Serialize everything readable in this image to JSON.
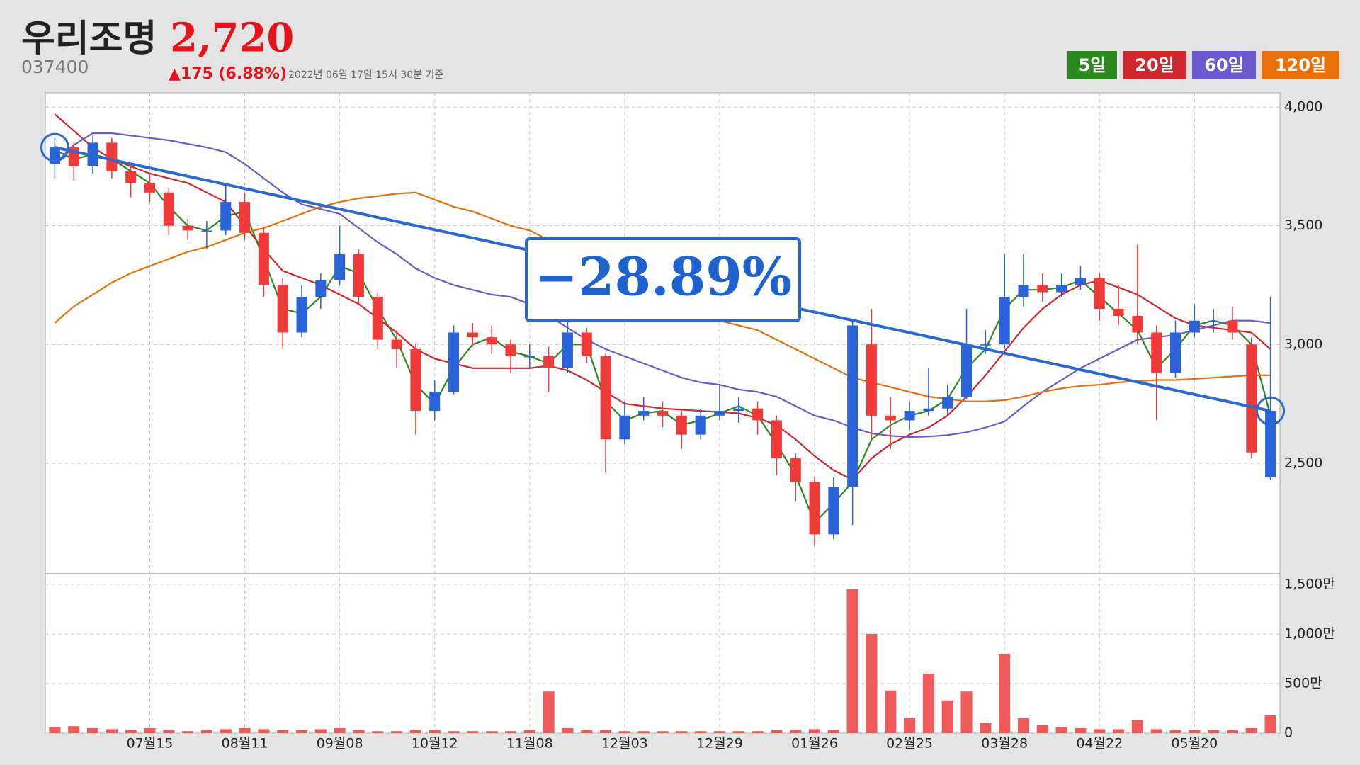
{
  "chart_data": {
    "type": "candlestick",
    "title": "우리조명",
    "price_label": "2,720",
    "code": "037400",
    "change_label": "▲175 (6.88%)",
    "timestamp": "2022년 06월 17일 15시 30분 기준",
    "annotation": "−28.89%",
    "categories": [
      null,
      null,
      null,
      null,
      null,
      "07월15",
      null,
      null,
      null,
      null,
      "08월11",
      null,
      null,
      null,
      null,
      "09월08",
      null,
      null,
      null,
      null,
      "10월12",
      null,
      null,
      null,
      null,
      "11월08",
      null,
      null,
      null,
      null,
      "12월03",
      null,
      null,
      null,
      null,
      "12월29",
      null,
      null,
      null,
      null,
      "01월26",
      null,
      null,
      null,
      null,
      "02월25",
      null,
      null,
      null,
      null,
      "03월28",
      null,
      null,
      null,
      null,
      "04월22",
      null,
      null,
      null,
      null,
      "05월20",
      null,
      null,
      null,
      null
    ],
    "candles": [
      [
        3760,
        3870,
        3700,
        3830
      ],
      [
        3830,
        3850,
        3690,
        3750
      ],
      [
        3750,
        3880,
        3720,
        3850
      ],
      [
        3850,
        3870,
        3700,
        3730
      ],
      [
        3730,
        3760,
        3620,
        3680
      ],
      [
        3680,
        3720,
        3600,
        3640
      ],
      [
        3640,
        3660,
        3460,
        3500
      ],
      [
        3500,
        3530,
        3440,
        3480
      ],
      [
        3480,
        3520,
        3400,
        3480
      ],
      [
        3480,
        3680,
        3460,
        3600
      ],
      [
        3600,
        3640,
        3440,
        3470
      ],
      [
        3470,
        3490,
        3200,
        3250
      ],
      [
        3250,
        3280,
        2980,
        3050
      ],
      [
        3050,
        3250,
        3030,
        3200
      ],
      [
        3200,
        3300,
        3150,
        3270
      ],
      [
        3270,
        3500,
        3250,
        3380
      ],
      [
        3380,
        3400,
        3170,
        3200
      ],
      [
        3200,
        3220,
        2980,
        3020
      ],
      [
        3020,
        3060,
        2900,
        2980
      ],
      [
        2980,
        3000,
        2620,
        2720
      ],
      [
        2720,
        2850,
        2680,
        2800
      ],
      [
        2800,
        3080,
        2790,
        3050
      ],
      [
        3050,
        3090,
        2990,
        3030
      ],
      [
        3030,
        3080,
        2960,
        3000
      ],
      [
        3000,
        3020,
        2880,
        2950
      ],
      [
        2950,
        3000,
        2900,
        2950
      ],
      [
        2950,
        2990,
        2800,
        2900
      ],
      [
        2900,
        3150,
        2880,
        3050
      ],
      [
        3050,
        3070,
        2920,
        2950
      ],
      [
        2950,
        2960,
        2460,
        2600
      ],
      [
        2600,
        2760,
        2580,
        2700
      ],
      [
        2700,
        2780,
        2680,
        2720
      ],
      [
        2720,
        2760,
        2650,
        2700
      ],
      [
        2700,
        2720,
        2560,
        2620
      ],
      [
        2620,
        2730,
        2600,
        2700
      ],
      [
        2700,
        2830,
        2680,
        2720
      ],
      [
        2720,
        2780,
        2670,
        2730
      ],
      [
        2730,
        2760,
        2620,
        2680
      ],
      [
        2680,
        2700,
        2450,
        2520
      ],
      [
        2520,
        2540,
        2340,
        2420
      ],
      [
        2420,
        2440,
        2150,
        2200
      ],
      [
        2200,
        2440,
        2180,
        2400
      ],
      [
        2400,
        3100,
        2240,
        3080
      ],
      [
        3000,
        3150,
        2600,
        2700
      ],
      [
        2700,
        2780,
        2560,
        2680
      ],
      [
        2680,
        2760,
        2640,
        2720
      ],
      [
        2720,
        2900,
        2700,
        2730
      ],
      [
        2730,
        2830,
        2700,
        2780
      ],
      [
        2780,
        3150,
        2770,
        3000
      ],
      [
        3000,
        3060,
        2960,
        3000
      ],
      [
        3000,
        3380,
        2980,
        3200
      ],
      [
        3200,
        3380,
        3160,
        3250
      ],
      [
        3250,
        3300,
        3180,
        3220
      ],
      [
        3220,
        3300,
        3200,
        3250
      ],
      [
        3250,
        3330,
        3230,
        3280
      ],
      [
        3280,
        3300,
        3100,
        3150
      ],
      [
        3150,
        3250,
        3080,
        3120
      ],
      [
        3120,
        3420,
        3000,
        3050
      ],
      [
        3050,
        3080,
        2680,
        2880
      ],
      [
        2880,
        3100,
        2860,
        3050
      ],
      [
        3050,
        3170,
        3030,
        3100
      ],
      [
        3100,
        3150,
        3050,
        3100
      ],
      [
        3100,
        3160,
        3020,
        3050
      ],
      [
        3000,
        3030,
        2520,
        2545
      ],
      [
        2440,
        3200,
        2430,
        2720
      ]
    ],
    "up_color": "#2a62d8",
    "down_color": "#f03a3a",
    "series": [
      {
        "name": "5일",
        "color": "#2a8a1e",
        "values": [
          3820,
          3780,
          3800,
          3780,
          3730,
          3680,
          3580,
          3500,
          3480,
          3540,
          3560,
          3360,
          3150,
          3130,
          3200,
          3330,
          3300,
          3150,
          3020,
          2830,
          2750,
          2900,
          3000,
          3030,
          2970,
          2950,
          2920,
          3000,
          3000,
          2760,
          2680,
          2710,
          2720,
          2660,
          2680,
          2710,
          2740,
          2700,
          2580,
          2450,
          2250,
          2330,
          2420,
          2600,
          2660,
          2700,
          2720,
          2770,
          2900,
          2980,
          3150,
          3230,
          3230,
          3240,
          3270,
          3200,
          3130,
          3060,
          2900,
          2980,
          3080,
          3100,
          3080,
          3000,
          2700
        ]
      },
      {
        "name": "20일",
        "color": "#d0262e",
        "values": [
          3970,
          3900,
          3830,
          3780,
          3750,
          3720,
          3700,
          3680,
          3640,
          3600,
          3500,
          3400,
          3310,
          3280,
          3250,
          3210,
          3170,
          3110,
          3050,
          2980,
          2940,
          2920,
          2900,
          2900,
          2900,
          2900,
          2910,
          2890,
          2850,
          2800,
          2750,
          2740,
          2730,
          2725,
          2720,
          2715,
          2710,
          2690,
          2660,
          2600,
          2530,
          2470,
          2430,
          2520,
          2580,
          2620,
          2650,
          2700,
          2780,
          2870,
          2970,
          3070,
          3150,
          3210,
          3250,
          3270,
          3240,
          3210,
          3160,
          3110,
          3080,
          3070,
          3060,
          3050,
          2980
        ]
      },
      {
        "name": "60일",
        "color": "#6a5acd",
        "values": [
          3760,
          3840,
          3890,
          3890,
          3880,
          3870,
          3860,
          3845,
          3830,
          3810,
          3760,
          3700,
          3640,
          3590,
          3570,
          3550,
          3490,
          3430,
          3380,
          3320,
          3280,
          3250,
          3230,
          3210,
          3200,
          3170,
          3120,
          3070,
          3020,
          2980,
          2950,
          2920,
          2890,
          2860,
          2840,
          2830,
          2810,
          2800,
          2780,
          2740,
          2700,
          2680,
          2650,
          2625,
          2615,
          2610,
          2612,
          2618,
          2630,
          2650,
          2675,
          2740,
          2800,
          2850,
          2900,
          2940,
          2980,
          3020,
          3030,
          3040,
          3060,
          3080,
          3100,
          3100,
          3090
        ]
      },
      {
        "name": "120일",
        "color": "#e8700a",
        "values": [
          3090,
          3160,
          3210,
          3260,
          3300,
          3330,
          3360,
          3390,
          3410,
          3440,
          3470,
          3490,
          3520,
          3550,
          3580,
          3600,
          3615,
          3625,
          3635,
          3640,
          3610,
          3580,
          3560,
          3530,
          3500,
          3480,
          3440,
          3400,
          3360,
          3310,
          3260,
          3210,
          3170,
          3140,
          3110,
          3100,
          3080,
          3060,
          3020,
          2980,
          2940,
          2900,
          2860,
          2840,
          2820,
          2800,
          2780,
          2770,
          2760,
          2760,
          2765,
          2780,
          2800,
          2815,
          2825,
          2830,
          2840,
          2845,
          2850,
          2850,
          2855,
          2860,
          2865,
          2870,
          2870
        ]
      }
    ],
    "ylim": [
      2040,
      4060
    ],
    "yticks": [
      {
        "value": 2500,
        "label": "2,500"
      },
      {
        "value": 3000,
        "label": "3,000"
      },
      {
        "value": 3500,
        "label": "3,500"
      },
      {
        "value": 4000,
        "label": "4,000"
      }
    ],
    "grid": true,
    "volume": {
      "color": "#f05a5a",
      "ylim": [
        0,
        16000000
      ],
      "yticks": [
        0,
        {
          "value": 5000000,
          "label": "500만"
        },
        {
          "value": 10000000,
          "label": "1,000만"
        },
        {
          "value": 15000000,
          "label": "1,500만"
        }
      ],
      "values": [
        600000,
        700000,
        500000,
        400000,
        300000,
        500000,
        300000,
        200000,
        300000,
        400000,
        500000,
        400000,
        300000,
        300000,
        400000,
        500000,
        300000,
        200000,
        200000,
        300000,
        300000,
        200000,
        200000,
        200000,
        200000,
        300000,
        4200000,
        500000,
        300000,
        300000,
        200000,
        200000,
        200000,
        200000,
        200000,
        200000,
        200000,
        200000,
        300000,
        300000,
        400000,
        300000,
        14500000,
        10000000,
        4300000,
        1500000,
        6000000,
        3300000,
        4200000,
        1000000,
        8000000,
        1500000,
        800000,
        600000,
        500000,
        400000,
        400000,
        1300000,
        400000,
        300000,
        300000,
        300000,
        300000,
        500000,
        1800000
      ]
    }
  }
}
